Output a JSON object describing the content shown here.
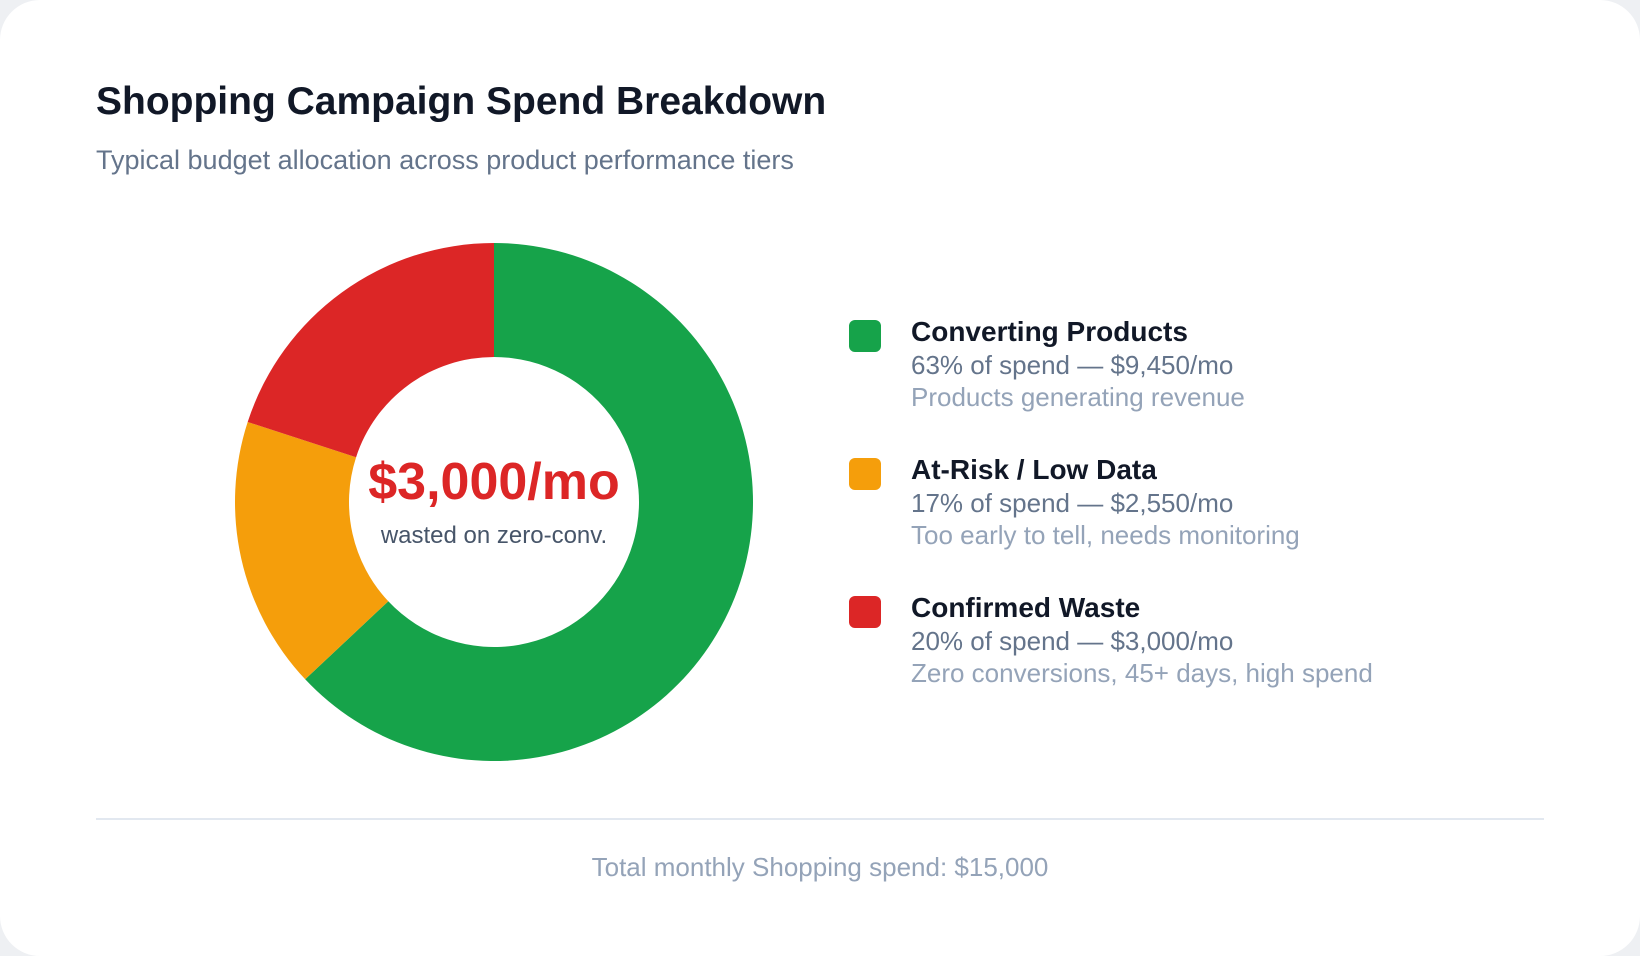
{
  "chart_data": {
    "type": "pie",
    "title": "Shopping Campaign Spend Breakdown",
    "subtitle": "Typical budget allocation across product performance tiers",
    "donut": true,
    "center_value": "$3,000/mo",
    "center_label": "wasted on zero-conv.",
    "legend_placement": "right",
    "slices": [
      {
        "name": "Converting Products",
        "percent": 63,
        "amount": 9450,
        "value_label": "63% of spend — $9,450/mo",
        "description": "Products generating revenue",
        "color": "#16a34a"
      },
      {
        "name": "At-Risk / Low Data",
        "percent": 17,
        "amount": 2550,
        "value_label": "17% of spend — $2,550/mo",
        "description": "Too early to tell, needs monitoring",
        "color": "#f59e0b"
      },
      {
        "name": "Confirmed Waste",
        "percent": 20,
        "amount": 3000,
        "value_label": "20% of spend — $3,000/mo",
        "description": "Zero conversions, 45+ days, high spend",
        "color": "#dc2626"
      }
    ],
    "footer": "Total monthly Shopping spend: $15,000"
  }
}
